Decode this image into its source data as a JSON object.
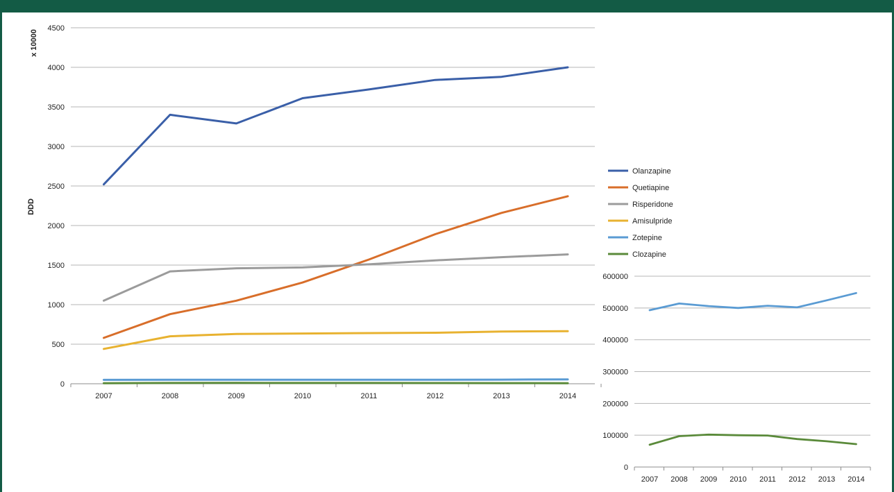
{
  "chart_data": [
    {
      "type": "line",
      "title": "",
      "xlabel": "",
      "ylabel": "DDD",
      "y_unit": "x 10000",
      "ylim": [
        0,
        4500
      ],
      "yticks": [
        0,
        500,
        1000,
        1500,
        2000,
        2500,
        3000,
        3500,
        4000,
        4500
      ],
      "x": [
        "2007",
        "2008",
        "2009",
        "2010",
        "2011",
        "2012",
        "2013",
        "2014"
      ],
      "grid": true,
      "legend_position": "right",
      "series": [
        {
          "name": "Olanzapine",
          "color": "#3a5fa8",
          "values": [
            2520,
            3400,
            3290,
            3610,
            3720,
            3840,
            3880,
            4000
          ]
        },
        {
          "name": "Quetiapine",
          "color": "#d86e2a",
          "values": [
            580,
            880,
            1050,
            1280,
            1570,
            1890,
            2160,
            2370
          ]
        },
        {
          "name": "Risperidone",
          "color": "#9b9b9b",
          "values": [
            1050,
            1420,
            1460,
            1470,
            1510,
            1560,
            1600,
            1635
          ]
        },
        {
          "name": "Amisulpride",
          "color": "#e8b230",
          "values": [
            440,
            600,
            630,
            635,
            640,
            645,
            660,
            665
          ]
        },
        {
          "name": "Zotepine",
          "color": "#5a9bd3",
          "values": [
            49,
            51,
            51,
            50,
            51,
            50,
            52,
            55
          ]
        },
        {
          "name": "Clozapine",
          "color": "#5a8a3a",
          "values": [
            7,
            9.7,
            10.2,
            10,
            9.9,
            8.8,
            8.1,
            7.2
          ]
        }
      ]
    },
    {
      "type": "line",
      "title": "",
      "xlabel": "",
      "ylabel": "",
      "ylim": [
        0,
        600000
      ],
      "yticks": [
        0,
        100000,
        200000,
        300000,
        400000,
        500000,
        600000
      ],
      "x": [
        "2007",
        "2008",
        "2009",
        "2010",
        "2011",
        "2012",
        "2013",
        "2014"
      ],
      "grid": true,
      "series": [
        {
          "name": "Zotepine",
          "color": "#5a9bd3",
          "values": [
            493000,
            514000,
            506000,
            500000,
            507000,
            502000,
            524000,
            547000
          ]
        },
        {
          "name": "Clozapine",
          "color": "#5a8a3a",
          "values": [
            70000,
            97000,
            102000,
            100000,
            99000,
            88000,
            81000,
            72000
          ]
        }
      ]
    }
  ]
}
